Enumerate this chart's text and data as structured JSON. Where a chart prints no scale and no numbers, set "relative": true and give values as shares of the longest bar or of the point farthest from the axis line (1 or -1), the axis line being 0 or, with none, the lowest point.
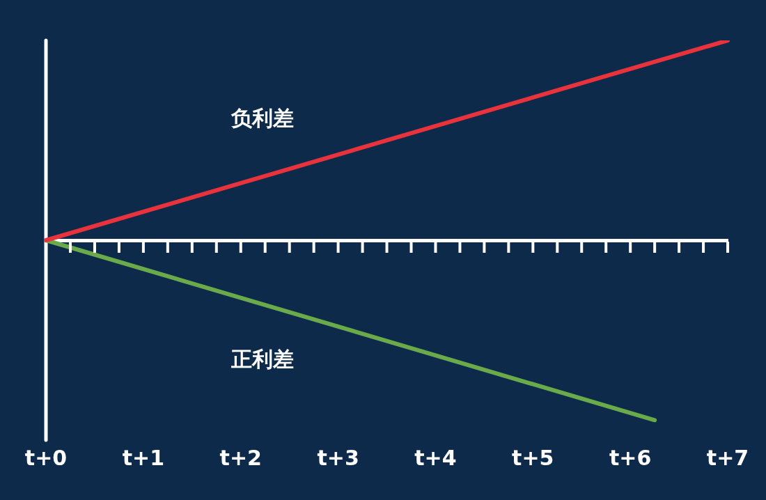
{
  "chart_data": {
    "type": "line",
    "relative": true,
    "categories": [
      "t+0",
      null,
      null,
      null,
      "t+1",
      null,
      null,
      null,
      "t+2",
      null,
      null,
      null,
      "t+3",
      null,
      null,
      null,
      "t+4",
      null,
      null,
      null,
      "t+5",
      null,
      null,
      null,
      "t+6",
      null,
      null,
      null,
      "t+7"
    ],
    "series": [
      {
        "name": "负利差",
        "color": "#e8323c",
        "values": [
          0,
          null,
          null,
          null,
          null,
          null,
          null,
          null,
          null,
          null,
          null,
          null,
          null,
          null,
          null,
          null,
          null,
          null,
          null,
          null,
          null,
          null,
          null,
          null,
          null,
          null,
          null,
          null,
          1
        ]
      },
      {
        "name": "正利差",
        "color": "#6aaa4a",
        "values": [
          0,
          null,
          null,
          null,
          null,
          null,
          null,
          null,
          null,
          null,
          null,
          null,
          null,
          null,
          null,
          null,
          null,
          null,
          null,
          null,
          null,
          null,
          null,
          null,
          null,
          -0.9,
          null,
          null,
          null
        ]
      }
    ]
  }
}
